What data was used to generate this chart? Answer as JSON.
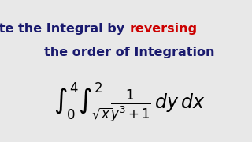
{
  "title_black1": "Evaluate the Integral by ",
  "title_red": "reversing",
  "title_black2": "the order of Integration",
  "formula": "$\\int_0^4 \\int_{\\sqrt{x}}^{2} \\frac{1}{y^3+1}\\, dy\\, dx$",
  "bg_color": "#e8e8e8",
  "title_color_black": "#1a1a6e",
  "title_color_red": "#cc0000",
  "formula_color": "#000000",
  "title_fontsize": 11.5,
  "formula_fontsize": 17
}
